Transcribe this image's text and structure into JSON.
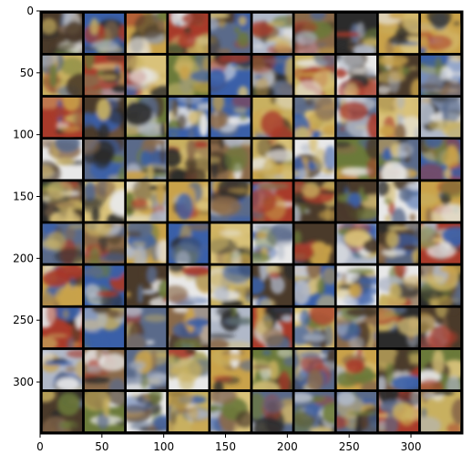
{
  "figure": {
    "grid": {
      "rows": 10,
      "cols": 10,
      "content": "generated image samples (blurry, mixed colors: blue skies, tan/yellow, green, dark, red)"
    },
    "border_color": "#000000",
    "palette": [
      "#3a5fa8",
      "#c9a24a",
      "#6b7a3a",
      "#2b2b2b",
      "#8a6a4a",
      "#b0b8c8",
      "#d9c27a",
      "#4a3a2a",
      "#a83a2a",
      "#e8e8e8",
      "#5a6a8a",
      "#c8b060"
    ]
  },
  "chart_data": {
    "type": "image",
    "x_ticks": [
      0,
      50,
      100,
      150,
      200,
      250,
      300
    ],
    "y_ticks": [
      0,
      50,
      100,
      150,
      200,
      250,
      300
    ],
    "xlim": [
      0,
      342
    ],
    "ylim": [
      342,
      0
    ]
  }
}
